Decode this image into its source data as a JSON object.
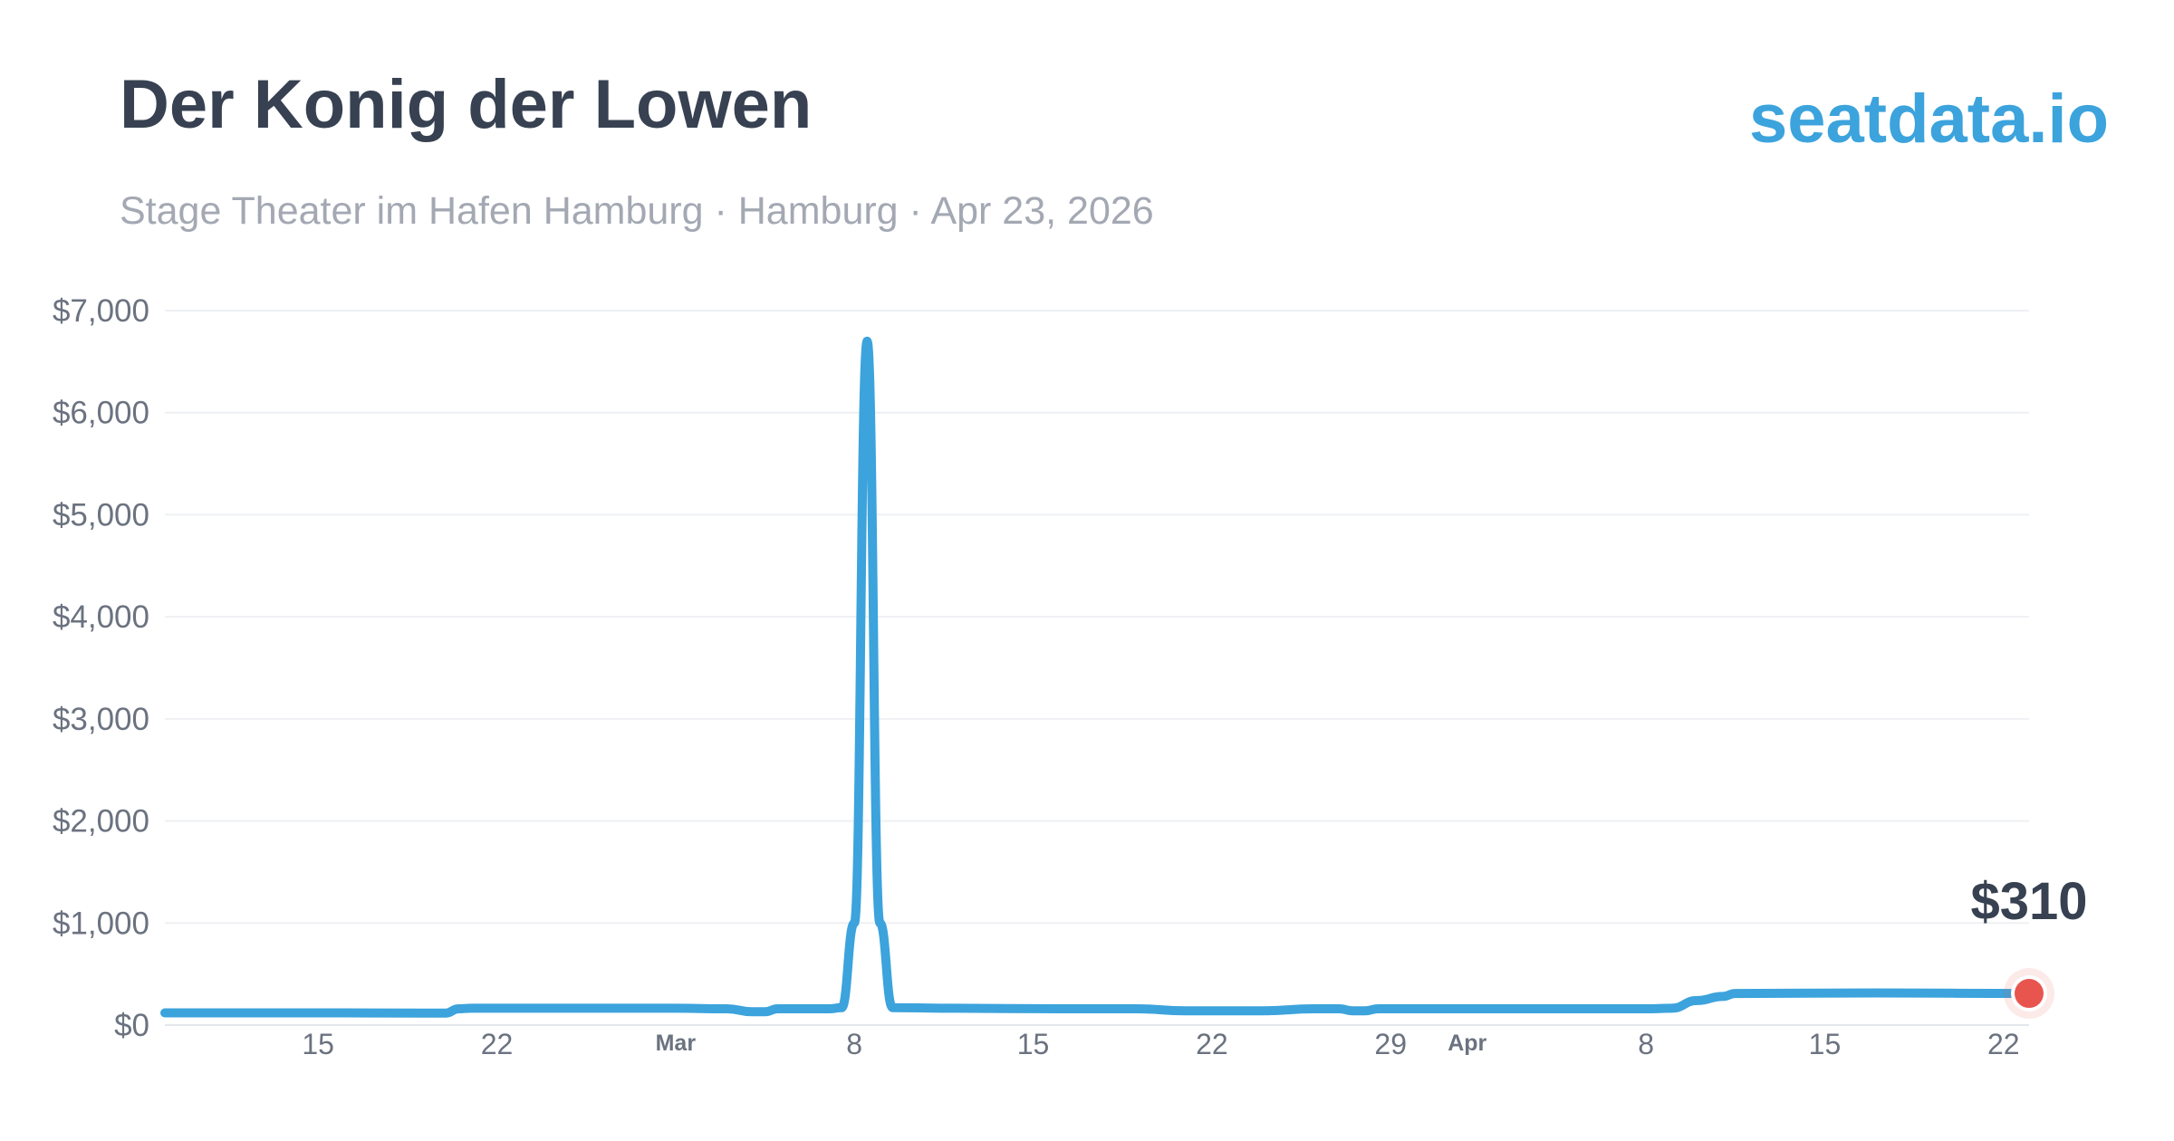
{
  "header": {
    "title": "Der Konig der Lowen",
    "subtitle": "Stage Theater im Hafen Hamburg · Hamburg · Apr 23, 2026",
    "brand": "seatdata.io"
  },
  "colors": {
    "line": "#3ca3dc",
    "marker": "#e8554e",
    "title": "#374151",
    "brand": "#3ca3dc"
  },
  "chart_data": {
    "type": "line",
    "title": "",
    "xlabel": "",
    "ylabel": "",
    "x_range": [
      "2026-02-09",
      "2026-04-23"
    ],
    "ylim": [
      0,
      7000
    ],
    "grid": true,
    "legend": "none",
    "y_ticks": [
      {
        "value": 0,
        "label": "$0"
      },
      {
        "value": 1000,
        "label": "$1,000"
      },
      {
        "value": 2000,
        "label": "$2,000"
      },
      {
        "value": 3000,
        "label": "$3,000"
      },
      {
        "value": 4000,
        "label": "$4,000"
      },
      {
        "value": 5000,
        "label": "$5,000"
      },
      {
        "value": 6000,
        "label": "$6,000"
      },
      {
        "value": 7000,
        "label": "$7,000"
      }
    ],
    "x_ticks": [
      {
        "date": "2026-02-15",
        "label": "15",
        "month": false
      },
      {
        "date": "2026-02-22",
        "label": "22",
        "month": false
      },
      {
        "date": "2026-03-01",
        "label": "Mar",
        "month": true
      },
      {
        "date": "2026-03-08",
        "label": "8",
        "month": false
      },
      {
        "date": "2026-03-15",
        "label": "15",
        "month": false
      },
      {
        "date": "2026-03-22",
        "label": "22",
        "month": false
      },
      {
        "date": "2026-03-29",
        "label": "29",
        "month": false
      },
      {
        "date": "2026-04-01",
        "label": "Apr",
        "month": true
      },
      {
        "date": "2026-04-08",
        "label": "8",
        "month": false
      },
      {
        "date": "2026-04-15",
        "label": "15",
        "month": false
      },
      {
        "date": "2026-04-22",
        "label": "22",
        "month": false
      }
    ],
    "series": [
      {
        "points": [
          {
            "x": "2026-02-09",
            "y": 120
          },
          {
            "x": "2026-02-15",
            "y": 120
          },
          {
            "x": "2026-02-19",
            "y": 118
          },
          {
            "x": "2026-02-20",
            "y": 118
          },
          {
            "x": "2026-02-20T12:00",
            "y": 160
          },
          {
            "x": "2026-02-21",
            "y": 165
          },
          {
            "x": "2026-02-26",
            "y": 165
          },
          {
            "x": "2026-03-01",
            "y": 165
          },
          {
            "x": "2026-03-03",
            "y": 160
          },
          {
            "x": "2026-03-04",
            "y": 130
          },
          {
            "x": "2026-03-04T12:00",
            "y": 130
          },
          {
            "x": "2026-03-05",
            "y": 160
          },
          {
            "x": "2026-03-07",
            "y": 160
          },
          {
            "x": "2026-03-07T12:00",
            "y": 170
          },
          {
            "x": "2026-03-08",
            "y": 1000
          },
          {
            "x": "2026-03-08T12:00",
            "y": 6700
          },
          {
            "x": "2026-03-09",
            "y": 1000
          },
          {
            "x": "2026-03-09T12:00",
            "y": 170
          },
          {
            "x": "2026-03-12",
            "y": 165
          },
          {
            "x": "2026-03-16",
            "y": 160
          },
          {
            "x": "2026-03-19",
            "y": 160
          },
          {
            "x": "2026-03-21",
            "y": 140
          },
          {
            "x": "2026-03-24",
            "y": 140
          },
          {
            "x": "2026-03-26",
            "y": 160
          },
          {
            "x": "2026-03-27",
            "y": 160
          },
          {
            "x": "2026-03-27T12:00",
            "y": 140
          },
          {
            "x": "2026-03-28",
            "y": 140
          },
          {
            "x": "2026-03-28T12:00",
            "y": 160
          },
          {
            "x": "2026-04-01",
            "y": 160
          },
          {
            "x": "2026-04-08",
            "y": 160
          },
          {
            "x": "2026-04-09",
            "y": 165
          },
          {
            "x": "2026-04-10",
            "y": 240
          },
          {
            "x": "2026-04-11",
            "y": 280
          },
          {
            "x": "2026-04-11T12:00",
            "y": 310
          },
          {
            "x": "2026-04-17",
            "y": 315
          },
          {
            "x": "2026-04-23",
            "y": 310
          }
        ]
      }
    ],
    "last_value": {
      "x": "2026-04-23",
      "y": 310,
      "label": "$310"
    }
  }
}
